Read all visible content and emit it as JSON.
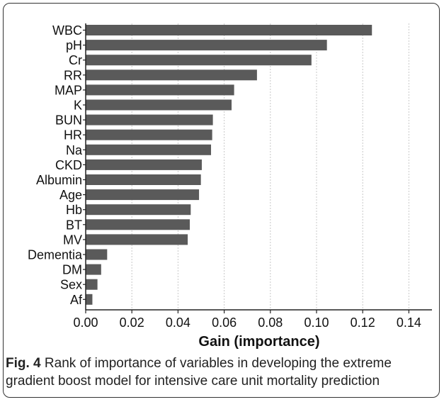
{
  "chart_data": {
    "type": "bar",
    "orientation": "horizontal",
    "categories": [
      "WBC",
      "pH",
      "Cr",
      "RR",
      "MAP",
      "K",
      "BUN",
      "HR",
      "Na",
      "CKD",
      "Albumin",
      "Age",
      "Hb",
      "BT",
      "MV",
      "Dementia",
      "DM",
      "Sex",
      "Af"
    ],
    "values": [
      0.124,
      0.1045,
      0.0978,
      0.0742,
      0.0643,
      0.0632,
      0.0551,
      0.0548,
      0.0543,
      0.0503,
      0.0499,
      0.0491,
      0.0455,
      0.0451,
      0.0442,
      0.0093,
      0.0067,
      0.0051,
      0.0029
    ],
    "xlabel": "Gain (importance)",
    "ylabel": "",
    "xlim": [
      0,
      0.15
    ],
    "xticks": [
      "0.00",
      "0.02",
      "0.04",
      "0.06",
      "0.08",
      "0.10",
      "0.12",
      "0.14"
    ],
    "grid": "vertical-dotted",
    "bar_color": "#5a5a5a"
  },
  "caption": {
    "label": "Fig. 4",
    "text": " Rank of importance of variables in developing the extreme gradient boost model for intensive care unit mortality prediction"
  }
}
